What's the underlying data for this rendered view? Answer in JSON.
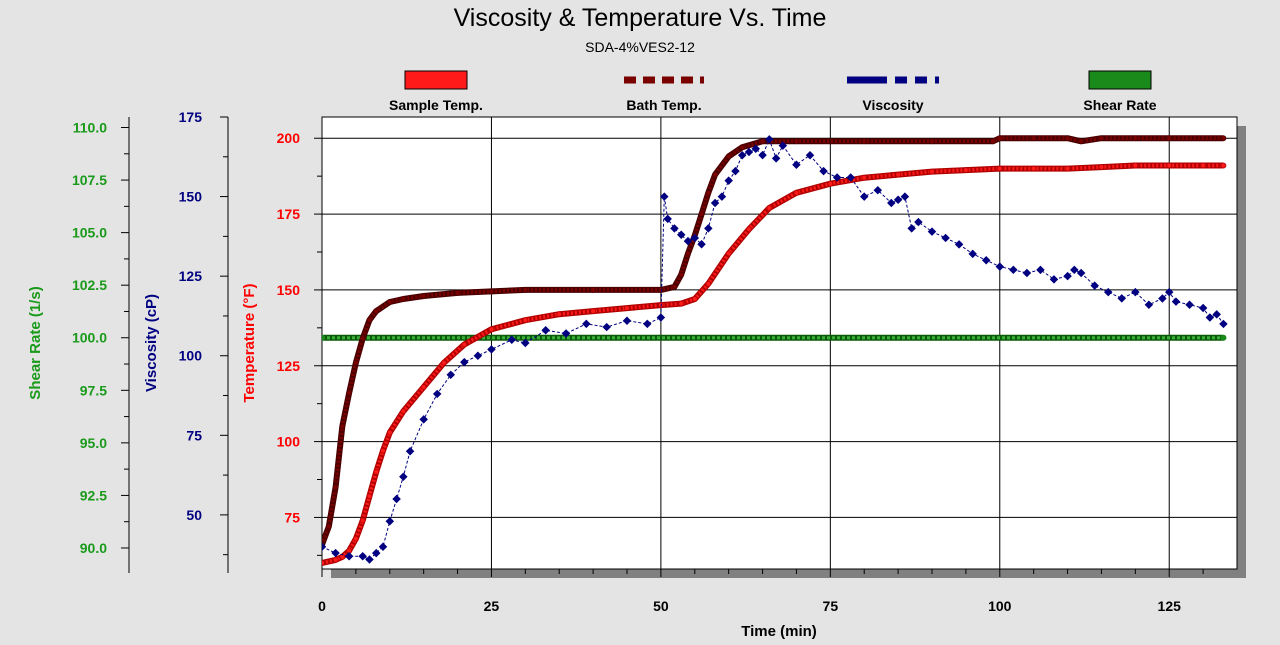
{
  "chart_data": {
    "type": "line",
    "title": "Viscosity & Temperature Vs. Time",
    "subtitle": "SDA-4%VES2-12",
    "xlabel": "Time (min)",
    "xlim": [
      0,
      135
    ],
    "xticks": [
      "0",
      "25",
      "50",
      "75",
      "100",
      "125"
    ],
    "grid": true,
    "legend_position": "top",
    "axes": {
      "shear": {
        "label": "Shear Rate (1/s)",
        "color": "#1a9a1a",
        "lim": [
          89.0,
          110.5
        ],
        "ticks": [
          "90.0",
          "92.5",
          "95.0",
          "97.5",
          "100.0",
          "102.5",
          "105.0",
          "107.5",
          "110.0"
        ]
      },
      "viscosity": {
        "label": "Viscosity (cP)",
        "color": "#000080",
        "lim": [
          33,
          175
        ],
        "ticks": [
          "50",
          "75",
          "100",
          "125",
          "150",
          "175"
        ]
      },
      "temperature": {
        "label": "Temperature (°F)",
        "color": "#ff0000",
        "lim": [
          58,
          207
        ],
        "ticks": [
          "75",
          "100",
          "125",
          "150",
          "175",
          "200"
        ]
      }
    },
    "series": [
      {
        "name": "Sample Temp.",
        "axis": "temperature",
        "color": "#ff1a1a",
        "x": [
          0,
          2,
          3,
          4,
          5,
          6,
          7,
          8,
          9,
          10,
          12,
          15,
          18,
          21,
          25,
          30,
          35,
          40,
          45,
          50,
          53,
          55,
          57,
          60,
          63,
          66,
          70,
          75,
          80,
          85,
          90,
          95,
          100,
          105,
          110,
          115,
          120,
          125,
          130,
          133
        ],
        "y": [
          60,
          61,
          62,
          64,
          68,
          74,
          82,
          90,
          97,
          103,
          110,
          118,
          126,
          132,
          137,
          140,
          142,
          143,
          144,
          145,
          145.5,
          147,
          152,
          162,
          170,
          177,
          182,
          185,
          187,
          188,
          189,
          189.5,
          190,
          190,
          190,
          190.5,
          191,
          191,
          191,
          191
        ]
      },
      {
        "name": "Bath Temp.",
        "axis": "temperature",
        "color": "#7a0000",
        "x": [
          0,
          1,
          2,
          3,
          4,
          5,
          6,
          7,
          8,
          10,
          12,
          15,
          20,
          25,
          30,
          40,
          50,
          52,
          53,
          54,
          55,
          56,
          57,
          58,
          60,
          62,
          65,
          70,
          80,
          90,
          99,
          100,
          105,
          110,
          112,
          115,
          120,
          125,
          133
        ],
        "y": [
          66,
          72,
          85,
          105,
          116,
          126,
          134,
          140,
          143,
          146,
          147,
          148,
          149,
          149.5,
          150,
          150,
          150,
          151,
          155,
          162,
          168,
          175,
          182,
          188,
          194,
          197,
          199,
          199,
          199,
          199,
          199,
          200,
          200,
          200,
          199,
          200,
          200,
          200,
          200
        ]
      },
      {
        "name": "Viscosity",
        "axis": "viscosity",
        "color": "#000080",
        "x": [
          0,
          2,
          4,
          6,
          7,
          8,
          9,
          10,
          11,
          12,
          13,
          15,
          17,
          19,
          21,
          23,
          25,
          28,
          30,
          33,
          36,
          39,
          42,
          45,
          48,
          50,
          50.5,
          51,
          52,
          53,
          54,
          55,
          56,
          57,
          58,
          59,
          60,
          61,
          62,
          63,
          64,
          65,
          66,
          67,
          68,
          70,
          72,
          74,
          76,
          78,
          80,
          82,
          84,
          85,
          86,
          87,
          88,
          90,
          92,
          94,
          96,
          98,
          100,
          102,
          104,
          106,
          108,
          110,
          111,
          112,
          114,
          116,
          118,
          120,
          122,
          124,
          125,
          126,
          128,
          130,
          131,
          132,
          133
        ],
        "y": [
          40,
          38,
          37,
          37,
          36,
          38,
          40,
          48,
          55,
          62,
          70,
          80,
          88,
          94,
          98,
          100,
          102,
          105,
          104,
          108,
          107,
          110,
          109,
          111,
          110,
          112,
          150,
          143,
          140,
          138,
          136,
          137,
          135,
          140,
          148,
          150,
          155,
          158,
          163,
          164,
          165,
          163,
          168,
          162,
          166,
          160,
          163,
          158,
          156,
          156,
          150,
          152,
          148,
          149,
          150,
          140,
          142,
          139,
          137,
          135,
          132,
          130,
          128,
          127,
          126,
          127,
          124,
          125,
          127,
          126,
          122,
          120,
          118,
          120,
          116,
          118,
          120,
          117,
          116,
          115,
          112,
          113,
          110
        ]
      },
      {
        "name": "Shear Rate",
        "axis": "shear",
        "color": "#1a8a1a",
        "x": [
          0,
          133
        ],
        "y": [
          100,
          100
        ]
      }
    ]
  }
}
